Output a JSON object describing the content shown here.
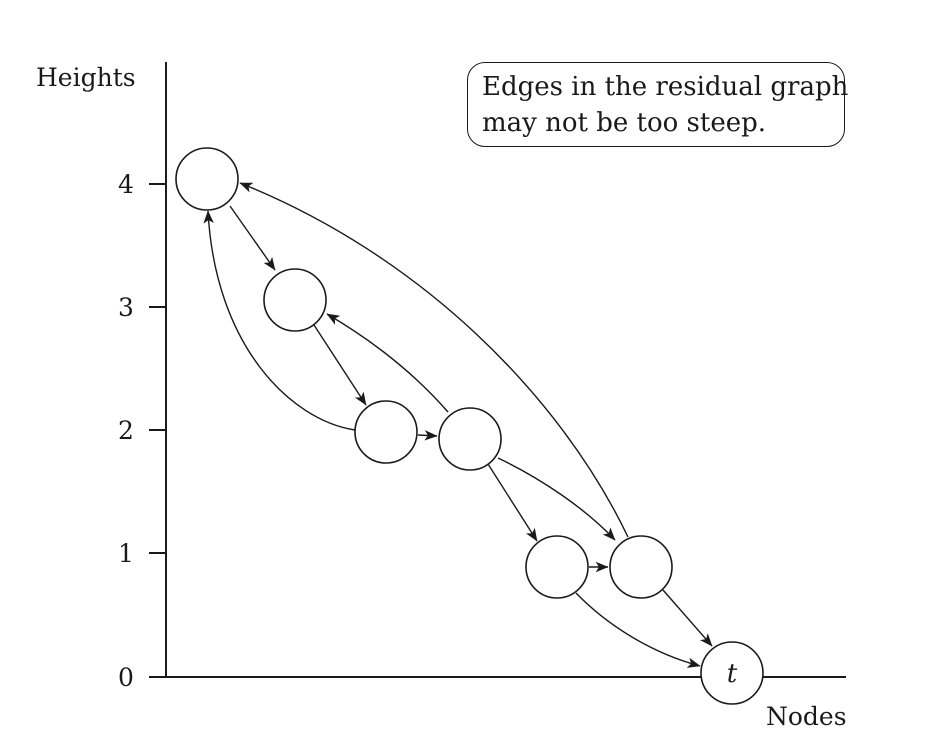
{
  "axes": {
    "y_label": "Heights",
    "x_label": "Nodes",
    "y_ticks": [
      {
        "label": "0",
        "value": 0
      },
      {
        "label": "1",
        "value": 1
      },
      {
        "label": "2",
        "value": 2
      },
      {
        "label": "3",
        "value": 3
      },
      {
        "label": "4",
        "value": 4
      }
    ]
  },
  "callout": {
    "line1": "Edges in the residual graph",
    "line2": "may not be too steep."
  },
  "nodes": [
    {
      "id": "n1",
      "height": 4,
      "label": ""
    },
    {
      "id": "n2",
      "height": 3,
      "label": ""
    },
    {
      "id": "n3",
      "height": 2,
      "label": ""
    },
    {
      "id": "n4",
      "height": 2,
      "label": ""
    },
    {
      "id": "n5",
      "height": 1,
      "label": ""
    },
    {
      "id": "n6",
      "height": 1,
      "label": ""
    },
    {
      "id": "t",
      "height": 0,
      "label": "t"
    }
  ],
  "edges": [
    {
      "from": "n1",
      "to": "n2"
    },
    {
      "from": "n2",
      "to": "n3"
    },
    {
      "from": "n3",
      "to": "n4"
    },
    {
      "from": "n4",
      "to": "n5"
    },
    {
      "from": "n5",
      "to": "n6"
    },
    {
      "from": "n6",
      "to": "t"
    },
    {
      "from": "n3",
      "to": "n1"
    },
    {
      "from": "n4",
      "to": "n2"
    },
    {
      "from": "n4",
      "to": "n6"
    },
    {
      "from": "n6",
      "to": "n1"
    },
    {
      "from": "n5",
      "to": "t"
    }
  ]
}
